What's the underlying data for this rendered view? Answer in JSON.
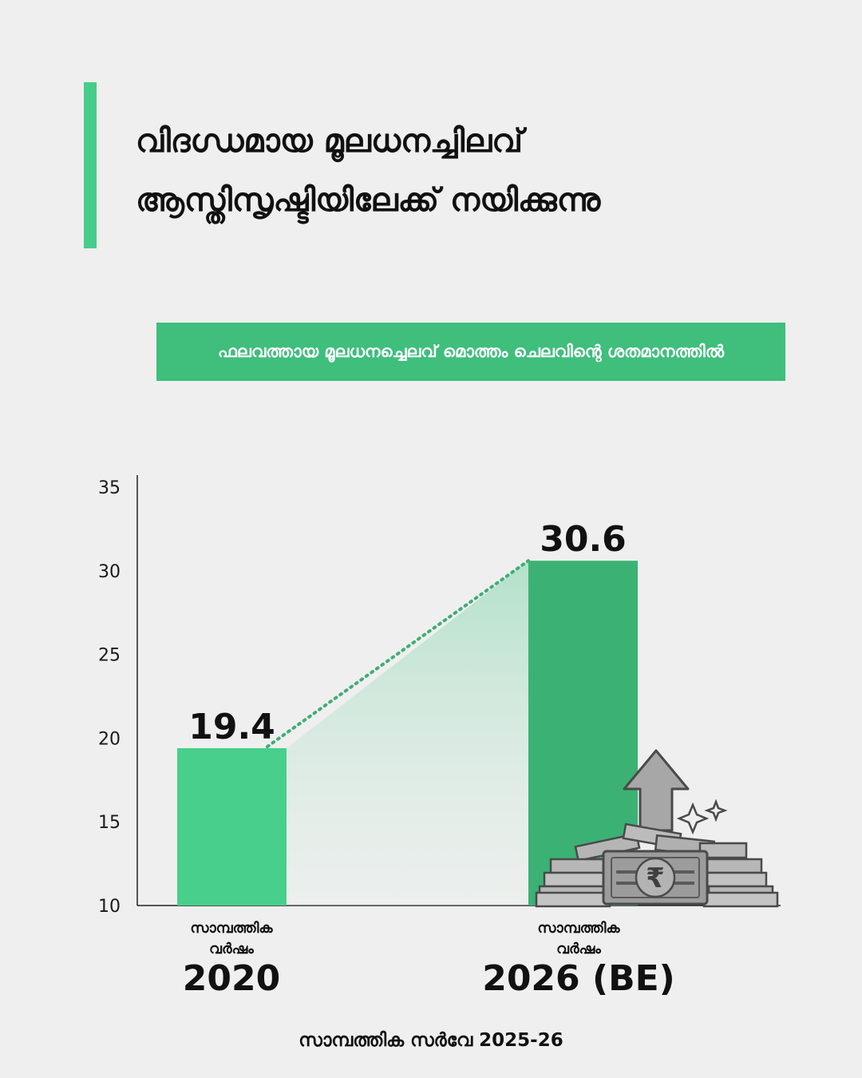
{
  "title": {
    "line1": "വിദഗ്ധമായ മൂലധനച്ചിലവ്",
    "line2": "ആസ്തിസൃഷ്ടിയിലേക്ക് നയിക്കുന്നു"
  },
  "subtitle": "ഫലവത്തായ മൂലധനച്ചെലവ് മൊത്തം ചെലവിന്റെ ശതമാനത്തിൽ",
  "footer": "സാമ്പത്തിക സർവേ 2025-26",
  "colors": {
    "accent": "#46cd8a",
    "bar_2020": "#48cf8b",
    "bar_2026": "#3bb273",
    "trend_line": "#3fae74",
    "background": "#efefef"
  },
  "chart_data": {
    "type": "bar",
    "categories": [
      {
        "prefix": "സാമ്പത്തിക",
        "prefix2": "വർഷം",
        "year": "2020"
      },
      {
        "prefix": "സാമ്പത്തിക",
        "prefix2": "വർഷം",
        "year": "2026 (BE)"
      }
    ],
    "values": [
      19.4,
      30.6
    ],
    "value_labels": [
      "19.4",
      "30.6"
    ],
    "ylim": [
      10,
      35
    ],
    "yticks": [
      10,
      15,
      20,
      25,
      30,
      35
    ],
    "grid": false,
    "trend_line": "dotted",
    "illustration": "rupee-money-stack-with-up-arrow-icon"
  }
}
